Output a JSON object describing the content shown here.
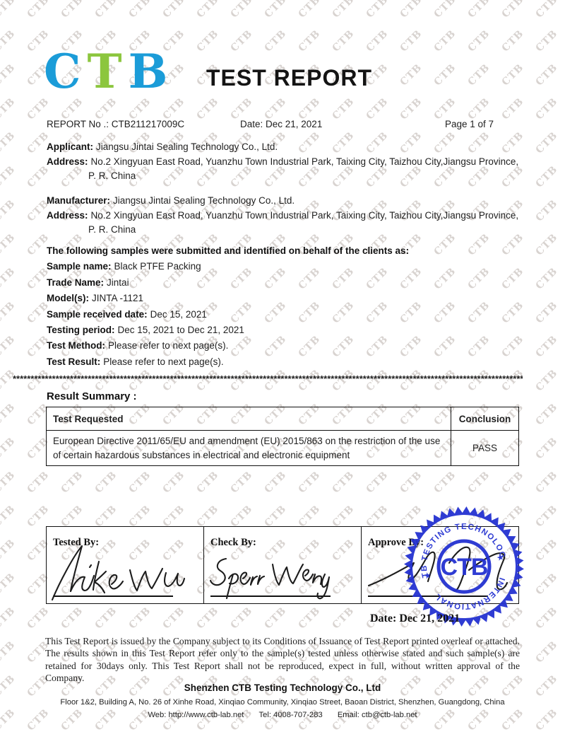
{
  "watermark": {
    "text": "CTB",
    "color": "#d8d3d0"
  },
  "logo": {
    "letters": [
      {
        "char": "C",
        "color": "#1b9cd8"
      },
      {
        "char": "T",
        "color": "#8cc63e"
      },
      {
        "char": "B",
        "color": "#1b9cd8"
      }
    ]
  },
  "header": {
    "title": "TEST REPORT",
    "report_no": "REPORT No .: CTB211217009C",
    "date": "Date: Dec 21, 2021",
    "page": "Page 1 of 7"
  },
  "applicant": {
    "label": "Applicant:",
    "name": "Jiangsu Jintai Sealing Technology Co., Ltd.",
    "address_label": "Address:",
    "address_line1": "No.2 Xingyuan East Road, Yuanzhu Town Industrial Park, Taixing City, Taizhou City,Jiangsu Province,",
    "address_line2": "P. R. China"
  },
  "manufacturer": {
    "label": "Manufacturer:",
    "name": "Jiangsu Jintai Sealing Technology Co., Ltd.",
    "address_label": "Address:",
    "address_line1": "No.2 Xingyuan East Road, Yuanzhu Town Industrial Park, Taixing City, Taizhou City,Jiangsu Province,",
    "address_line2": "P. R. China"
  },
  "samples": {
    "intro": "The following samples were submitted and identified on behalf of the clients as:",
    "rows": [
      {
        "label": "Sample name:",
        "value": "Black PTFE Packing"
      },
      {
        "label": "Trade Name:",
        "value": "Jintai"
      },
      {
        "label": "Model(s):",
        "value": "JINTA -1121"
      },
      {
        "label": "Sample received date:",
        "value": "Dec 15, 2021"
      },
      {
        "label": "Testing period:",
        "value": "Dec 15, 2021 to Dec 21, 2021"
      },
      {
        "label": "Test Method:",
        "value": "Please refer to next page(s)."
      },
      {
        "label": "Test Result:",
        "value": "Please refer to next page(s)."
      }
    ]
  },
  "separator": {
    "char": "*"
  },
  "result_summary": {
    "heading": "Result Summary :",
    "col_test": "Test Requested",
    "col_conclusion": "Conclusion",
    "row_test": "European Directive 2011/65/EU and amendment (EU) 2015/863 on the restriction of the use of certain hazardous substances in electrical and electronic equipment",
    "row_conclusion": "PASS"
  },
  "signatures": {
    "tested_label": "Tested By:",
    "check_label": "Check By:",
    "approve_label": "Approve By:",
    "tested_name": "Mike Wu",
    "check_name": "Sperr Weng",
    "date": "Date: Dec 21, 2021"
  },
  "stamp": {
    "top_text": "CTB TESTING TECHNOLOGY",
    "bottom_text": "INTERNATIONAL",
    "center_text": "CTB",
    "star": "★",
    "color": "#2432d1"
  },
  "footer": {
    "disclaimer": "This Test Report is issued by the Company subject to its Conditions of Issuance of Test Report printed overleaf or attached. The results shown in this Test Report refer only to the sample(s) tested unless otherwise stated and such sample(s) are retained for 30days only. This Test Report shall not be reproduced, expect in full, without written approval of the Company.",
    "company": "Shenzhen CTB Testing Technology Co., Ltd",
    "address": "Floor 1&2, Building A, No. 26 of Xinhe Road, Xinqiao Community, Xinqiao Street, Baoan District, Shenzhen, Guangdong, China",
    "web": "Web: http://www.ctb-lab.net",
    "tel": "Tel: 4008-707-283",
    "email": "Email: ctb@ctb-lab.net"
  }
}
